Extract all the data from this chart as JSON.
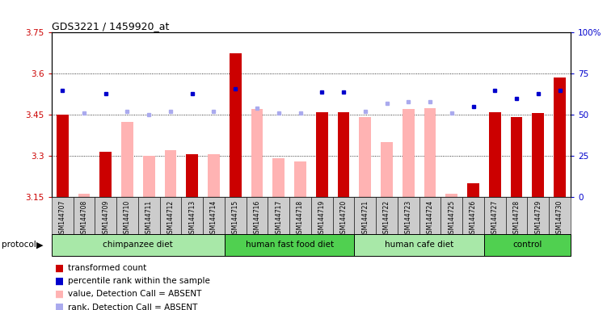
{
  "title": "GDS3221 / 1459920_at",
  "samples": [
    "GSM144707",
    "GSM144708",
    "GSM144709",
    "GSM144710",
    "GSM144711",
    "GSM144712",
    "GSM144713",
    "GSM144714",
    "GSM144715",
    "GSM144716",
    "GSM144717",
    "GSM144718",
    "GSM144719",
    "GSM144720",
    "GSM144721",
    "GSM144722",
    "GSM144723",
    "GSM144724",
    "GSM144725",
    "GSM144726",
    "GSM144727",
    "GSM144728",
    "GSM144729",
    "GSM144730"
  ],
  "transformed_count": [
    3.45,
    null,
    3.315,
    null,
    null,
    null,
    3.305,
    null,
    3.675,
    null,
    null,
    null,
    3.46,
    3.46,
    null,
    null,
    null,
    null,
    null,
    3.2,
    3.46,
    3.44,
    3.455,
    3.585
  ],
  "absent_value": [
    null,
    3.16,
    null,
    3.425,
    3.3,
    3.32,
    null,
    3.305,
    null,
    3.47,
    3.29,
    3.28,
    null,
    null,
    3.44,
    3.35,
    3.47,
    3.475,
    3.16,
    null,
    null,
    null,
    null,
    null
  ],
  "percentile_rank": [
    65,
    null,
    63,
    null,
    null,
    null,
    63,
    null,
    66,
    null,
    null,
    null,
    64,
    64,
    null,
    null,
    null,
    null,
    null,
    55,
    65,
    60,
    63,
    65
  ],
  "absent_rank": [
    null,
    51,
    null,
    52,
    50,
    52,
    null,
    52,
    null,
    54,
    51,
    51,
    null,
    null,
    52,
    57,
    58,
    58,
    51,
    null,
    null,
    null,
    null,
    null
  ],
  "groups": [
    {
      "label": "chimpanzee diet",
      "start": 0,
      "end": 8,
      "color": "#a8e8a8"
    },
    {
      "label": "human fast food diet",
      "start": 8,
      "end": 14,
      "color": "#50d050"
    },
    {
      "label": "human cafe diet",
      "start": 14,
      "end": 20,
      "color": "#a8e8a8"
    },
    {
      "label": "control",
      "start": 20,
      "end": 24,
      "color": "#50d050"
    }
  ],
  "ylim_left": [
    3.15,
    3.75
  ],
  "ylim_right": [
    0,
    100
  ],
  "yticks_left": [
    3.15,
    3.3,
    3.45,
    3.6,
    3.75
  ],
  "yticks_right": [
    0,
    25,
    50,
    75,
    100
  ],
  "ytick_labels_right": [
    "0",
    "25",
    "50",
    "75",
    "100%"
  ],
  "bar_color_dark": "#cc0000",
  "bar_color_absent": "#ffb3b3",
  "rank_color_dark": "#0000cc",
  "rank_color_absent": "#aaaaee",
  "bg_color_xticklabel": "#cccccc",
  "left_axis_color": "#cc0000",
  "right_axis_color": "#0000cc",
  "legend_items": [
    {
      "color": "#cc0000",
      "label": "transformed count"
    },
    {
      "color": "#0000cc",
      "label": "percentile rank within the sample"
    },
    {
      "color": "#ffb3b3",
      "label": "value, Detection Call = ABSENT"
    },
    {
      "color": "#aaaaee",
      "label": "rank, Detection Call = ABSENT"
    }
  ]
}
